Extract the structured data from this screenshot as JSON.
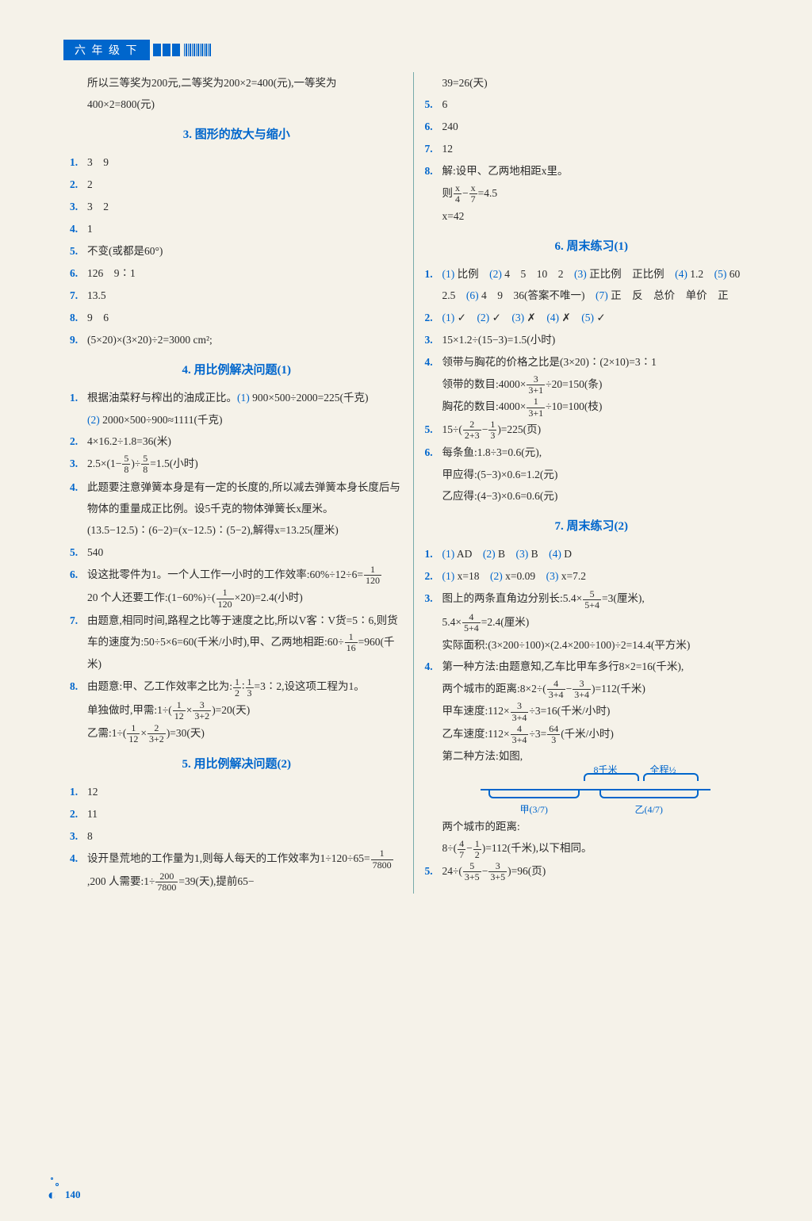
{
  "header": {
    "grade": "六 年 级 下"
  },
  "page_number": "140",
  "left": {
    "intro": "所以三等奖为200元,二等奖为200×2=400(元),一等奖为400×2=800(元)",
    "s3": {
      "title": "3. 图形的放大与缩小",
      "q1": "3　9",
      "q2": "2",
      "q3": "3　2",
      "q4": "1",
      "q5": "不变(或都是60°)",
      "q6": "126　9∶1",
      "q7": "13.5",
      "q8": "9　6",
      "q9": "(5×20)×(3×20)÷2=3000 cm²;"
    },
    "s4": {
      "title": "4. 用比例解决问题(1)",
      "q1a": "根据油菜籽与榨出的油成正比。",
      "q1b": "(1) ",
      "q1c": "900×500÷2000=225(千克)",
      "q1d": "(2) ",
      "q1e": "2000×500÷900≈1111(千克)",
      "q2": "4×16.2÷1.8=36(米)",
      "q3": "2.5×(1−5/8)÷5/8=1.5(小时)",
      "q4": "此题要注意弹簧本身是有一定的长度的,所以减去弹簧本身长度后与物体的重量成正比例。设5千克的物体弹簧长x厘米。(13.5−12.5)∶(6−2)=(x−12.5)∶(5−2),解得x=13.25(厘米)",
      "q5": "540",
      "q6a": "设这批零件为1。一个人工作一小时的工作效率:60%÷12÷6=",
      "q6b": "20 个人还要工作:(1−60%)÷(",
      "q6c": "×20)=2.4(小时)",
      "q7a": "由题意,相同时间,路程之比等于速度之比,所以V客∶V货=5∶6,则货车的速度为:50÷5×6=60(千米/小时),甲、乙两地相距:60÷",
      "q7b": "=960(千米)",
      "q8a": "由题意:甲、乙工作效率之比为:",
      "q8b": "=3∶2,设这项工程为1。",
      "q8c": "单独做时,甲需:1÷(",
      "q8d": ")=20(天)",
      "q8e": "乙需:1÷(",
      "q8f": ")=30(天)"
    },
    "s5": {
      "title": "5. 用比例解决问题(2)",
      "q1": "12",
      "q2": "11",
      "q3": "8",
      "q4a": "设开垦荒地的工作量为1,则每人每天的工作效率为1÷120÷65=",
      "q4b": ",200 人需要:1÷",
      "q4c": "=39(天),提前65−"
    }
  },
  "right": {
    "toprows": {
      "r0": "39=26(天)",
      "r5": "6",
      "r6": "240",
      "r7": "12",
      "r8a": "解:设甲、乙两地相距x里。",
      "r8b": "则 x/4 − x/7 = 4.5",
      "r8c": "x=42"
    },
    "s6": {
      "title": "6. 周末练习(1)",
      "q1": "(1) 比例　(2) 4　5　10　2　(3) 正比例　正比例　(4) 1.2　(5) 60　2.5　(6) 4　9　36(答案不唯一)　(7) 正　反　总价　单价　正",
      "q2": "(1) ✓　(2) ✓　(3) ✗　(4) ✗　(5) ✓",
      "q3": "15×1.2÷(15−3)=1.5(小时)",
      "q4a": "领带与胸花的价格之比是(3×20)∶(2×10)=3∶1",
      "q4b": "领带的数目:4000×",
      "q4c": "÷20=150(条)",
      "q4d": "胸花的数目:4000×",
      "q4e": "÷10=100(枝)",
      "q5a": "15÷(",
      "q5b": ")=225(页)",
      "q6a": "每条鱼:1.8÷3=0.6(元),",
      "q6b": "甲应得:(5−3)×0.6=1.2(元)",
      "q6c": "乙应得:(4−3)×0.6=0.6(元)"
    },
    "s7": {
      "title": "7. 周末练习(2)",
      "q1": "(1) AD　(2) B　(3) B　(4) D",
      "q2": "(1) x=18　(2) x=0.09　(3) x=7.2",
      "q3a": "图上的两条直角边分别长:5.4×",
      "q3b": "=3(厘米),",
      "q3c": "5.4×",
      "q3d": "=2.4(厘米)",
      "q3e": "实际面积:(3×200÷100)×(2.4×200÷100)÷2=14.4(平方米)",
      "q4a": "第一种方法:由题意知,乙车比甲车多行8×2=16(千米),",
      "q4b": "两个城市的距离:8×2÷(",
      "q4c": ")=112(千米)",
      "q4d": "甲车速度:112×",
      "q4e": "÷3=16(千米/小时)",
      "q4f": "乙车速度:112×",
      "q4g": "÷3=",
      "q4h": "(千米/小时)",
      "q4i": "第二种方法:如图,",
      "diagram": {
        "lbl_8km": "8千米",
        "lbl_half": "全程½",
        "lbl_jia": "甲(3/7)",
        "lbl_yi": "乙(4/7)"
      },
      "q4j": "两个城市的距离:",
      "q4k": "8÷(",
      "q4l": ")=112(千米),以下相同。",
      "q5a": "24÷(",
      "q5b": ")=96(页)"
    }
  },
  "colors": {
    "accent": "#0066cc",
    "text": "#2b2b2b",
    "bg": "#f5f2e9"
  }
}
